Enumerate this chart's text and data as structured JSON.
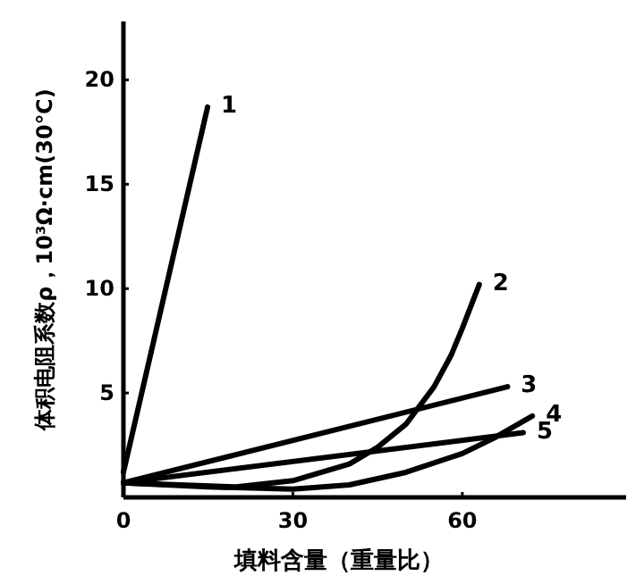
{
  "chart_data": {
    "type": "line",
    "xlabel": "填料含量（重量比）",
    "ylabel": "体积电阻系数ρ，10³Ω·cm(30℃)",
    "xlim": [
      0,
      89
    ],
    "ylim": [
      0,
      22.8
    ],
    "xticks": [
      0,
      30,
      60
    ],
    "yticks": [
      5,
      10,
      15,
      20
    ],
    "grid": false,
    "marker": "none",
    "line_style": "solid",
    "series": [
      {
        "name": "1",
        "color": "#000000",
        "x": [
          0,
          14.9
        ],
        "values": [
          1.2,
          18.7
        ]
      },
      {
        "name": "2",
        "color": "#000000",
        "x": [
          0,
          10,
          20,
          30,
          40,
          45,
          50,
          55,
          58,
          60,
          63
        ],
        "values": [
          0.7,
          0.6,
          0.5,
          0.8,
          1.6,
          2.4,
          3.5,
          5.3,
          6.8,
          8.1,
          10.2
        ]
      },
      {
        "name": "3",
        "color": "#000000",
        "x": [
          0,
          68
        ],
        "values": [
          0.7,
          5.3
        ]
      },
      {
        "name": "4",
        "color": "#000000",
        "x": [
          0,
          15,
          30,
          40,
          50,
          60,
          66,
          72.4
        ],
        "values": [
          0.7,
          0.5,
          0.4,
          0.6,
          1.2,
          2.1,
          2.9,
          3.9
        ]
      },
      {
        "name": "5",
        "color": "#000000",
        "x": [
          0,
          70.8
        ],
        "values": [
          0.7,
          3.1
        ]
      }
    ]
  }
}
